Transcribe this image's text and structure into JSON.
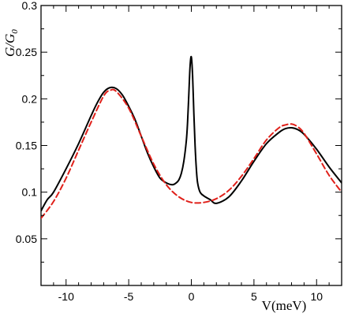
{
  "chart_data": {
    "type": "line",
    "title": "",
    "xlabel": "V(meV)",
    "ylabel": "G/G_0",
    "ylabel_main": "G/G",
    "ylabel_sub": "0",
    "xlim": [
      -12,
      12
    ],
    "ylim": [
      0.0,
      0.3
    ],
    "x_ticks": [
      -10,
      -5,
      0,
      5,
      10
    ],
    "x_tick_labels": [
      "-10",
      "-5",
      "0",
      "5",
      "10"
    ],
    "y_ticks": [
      0.05,
      0.1,
      0.15,
      0.2,
      0.25,
      0.3
    ],
    "y_tick_labels": [
      "0.05",
      "0.1",
      "0.15",
      "0.2",
      "0.25",
      "0.3"
    ],
    "grid": false,
    "legend": "none",
    "series": [
      {
        "style": "solid",
        "color": "#000000",
        "x": [
          -12,
          -11.5,
          -11,
          -10,
          -9,
          -8,
          -7.5,
          -7,
          -6.5,
          -6,
          -5.5,
          -5,
          -4.5,
          -4,
          -3.5,
          -3,
          -2.5,
          -2,
          -1.5,
          -1.2,
          -1,
          -0.8,
          -0.6,
          -0.4,
          -0.3,
          -0.2,
          -0.1,
          0,
          0.1,
          0.2,
          0.3,
          0.4,
          0.5,
          0.7,
          1,
          1.5,
          2,
          3,
          4,
          5,
          6,
          7,
          7.5,
          8,
          8.5,
          9,
          10,
          11,
          12
        ],
        "y": [
          0.08,
          0.092,
          0.1,
          0.125,
          0.152,
          0.182,
          0.196,
          0.207,
          0.212,
          0.211,
          0.204,
          0.192,
          0.178,
          0.16,
          0.142,
          0.127,
          0.115,
          0.11,
          0.108,
          0.11,
          0.113,
          0.12,
          0.133,
          0.155,
          0.175,
          0.205,
          0.235,
          0.245,
          0.225,
          0.185,
          0.15,
          0.125,
          0.11,
          0.1,
          0.096,
          0.092,
          0.088,
          0.095,
          0.112,
          0.133,
          0.152,
          0.164,
          0.168,
          0.169,
          0.167,
          0.162,
          0.146,
          0.127,
          0.11
        ]
      },
      {
        "style": "dashed",
        "color": "#e0201a",
        "x": [
          -12,
          -11,
          -10,
          -9,
          -8,
          -7,
          -6.5,
          -6,
          -5,
          -4,
          -3,
          -2,
          -1,
          0,
          1,
          2,
          3,
          4,
          5,
          6,
          7,
          7.5,
          8,
          8.5,
          9,
          10,
          11,
          12
        ],
        "y": [
          0.072,
          0.09,
          0.115,
          0.145,
          0.175,
          0.203,
          0.209,
          0.208,
          0.19,
          0.16,
          0.13,
          0.108,
          0.095,
          0.089,
          0.089,
          0.093,
          0.102,
          0.117,
          0.136,
          0.156,
          0.169,
          0.172,
          0.173,
          0.17,
          0.163,
          0.141,
          0.118,
          0.1
        ]
      }
    ]
  }
}
